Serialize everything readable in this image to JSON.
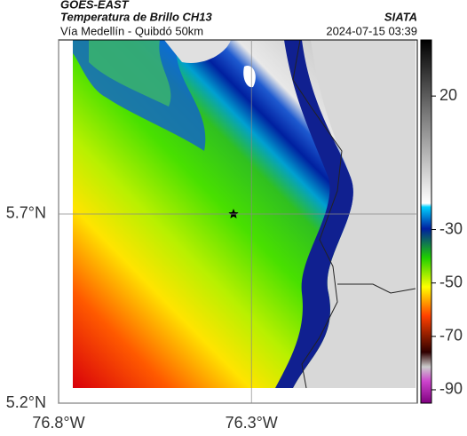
{
  "header": {
    "source": "GOES-EAST",
    "title": "Temperatura de Brillo CH13",
    "agency": "SIATA",
    "subtitle": "Vía Medellín - Quibdó 50km",
    "timestamp": "2024-07-15 03:39"
  },
  "map": {
    "xlim": [
      -76.8,
      -75.87
    ],
    "ylim": [
      5.2,
      6.16
    ],
    "xticks": [
      {
        "value": -76.8,
        "label": "76.8°W"
      },
      {
        "value": -76.3,
        "label": "76.3°W"
      }
    ],
    "yticks": [
      {
        "value": 5.2,
        "label": "5.2°N"
      },
      {
        "value": 5.7,
        "label": "5.7°N"
      }
    ],
    "grid": true
  },
  "colorbar": {
    "clim": [
      -95,
      41
    ],
    "ticks": [
      20,
      -30,
      -50,
      -70,
      -90
    ]
  }
}
